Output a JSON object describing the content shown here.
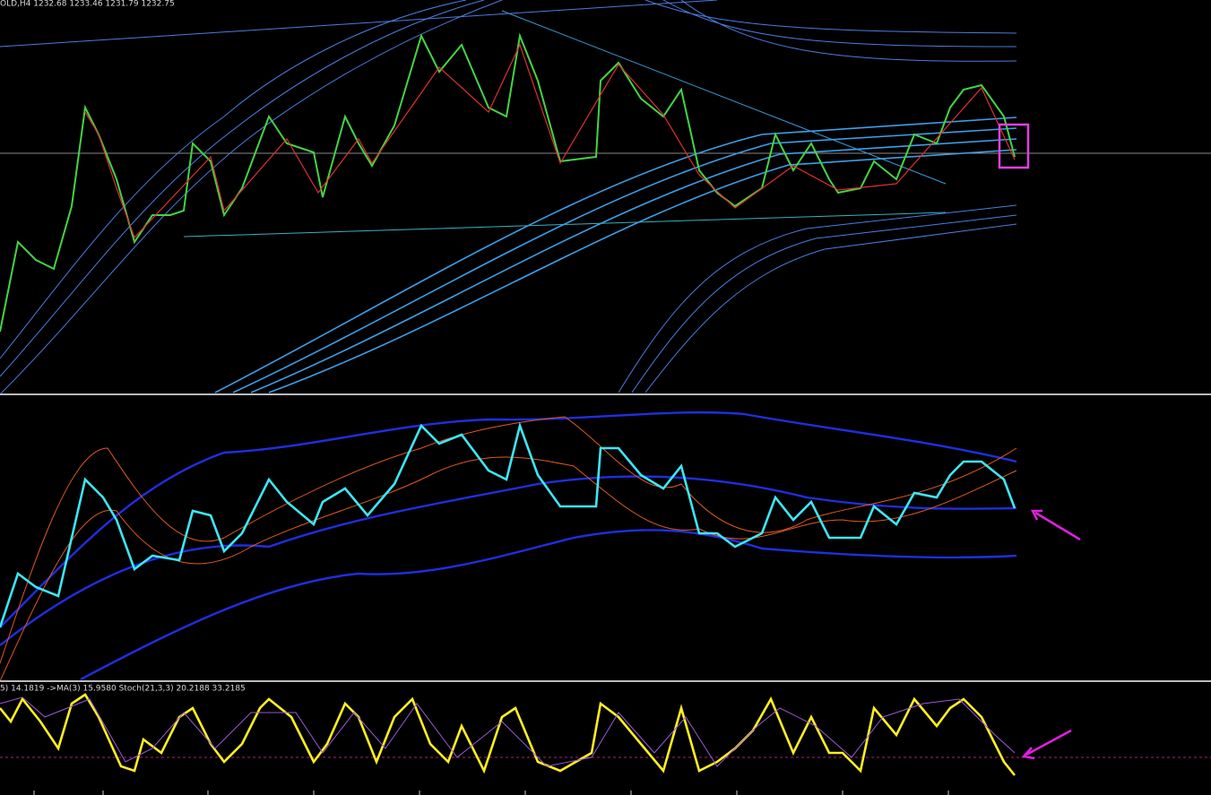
{
  "header": {
    "label": "OLD,H4  1232.68 1233.46 1231.79 1232.75"
  },
  "stoch_panel": {
    "label": "5) 14.1819  ->MA(3) 15.9580  Stoch(21,3,3) 20.2188 33.2185"
  }
}
